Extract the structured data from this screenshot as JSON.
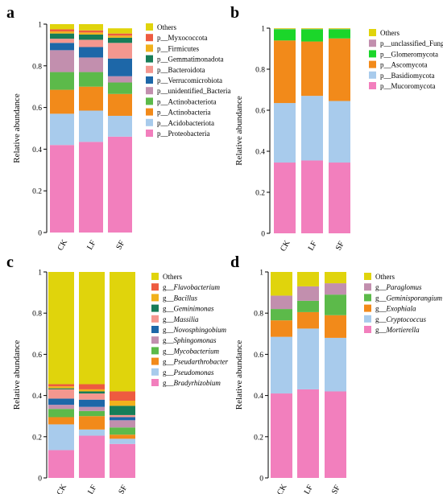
{
  "chart_data": [
    {
      "panel_label": "a",
      "type": "bar",
      "stacked": true,
      "categories": [
        "CK",
        "LF",
        "SF"
      ],
      "ylabel": "Relative abundance",
      "ylim": [
        0,
        1
      ],
      "yticks": [
        "0",
        "0.2",
        "0.4",
        "0.6",
        "0.8",
        "1"
      ],
      "series": [
        {
          "name": "p__Proteobacteria",
          "color": "#f27fbd",
          "values": [
            0.42,
            0.435,
            0.46
          ]
        },
        {
          "name": "p__Acidobacteriota",
          "color": "#a8cbec",
          "values": [
            0.15,
            0.15,
            0.1
          ]
        },
        {
          "name": "p__Actinobacteria",
          "color": "#f28a1a",
          "values": [
            0.115,
            0.115,
            0.105
          ]
        },
        {
          "name": "p__Actinobacteriota",
          "color": "#5cba4a",
          "values": [
            0.085,
            0.07,
            0.055
          ]
        },
        {
          "name": "p__unidentified_Bacteria",
          "color": "#c28fae",
          "values": [
            0.105,
            0.07,
            0.03
          ]
        },
        {
          "name": "p__Verrucomicrobiota",
          "color": "#1d67a8",
          "values": [
            0.035,
            0.05,
            0.085
          ]
        },
        {
          "name": "p__Bacteroidota",
          "color": "#f4978f",
          "values": [
            0.02,
            0.035,
            0.075
          ]
        },
        {
          "name": "p__Gemmatimonadota",
          "color": "#177d58",
          "values": [
            0.025,
            0.025,
            0.025
          ]
        },
        {
          "name": "p__Firmicutes",
          "color": "#f1b11c",
          "values": [
            0.01,
            0.01,
            0.01
          ]
        },
        {
          "name": "p__Myxococcota",
          "color": "#ee5b40",
          "values": [
            0.01,
            0.01,
            0.01
          ]
        },
        {
          "name": "Others",
          "color": "#e0d40c",
          "values": [
            0.025,
            0.03,
            0.025
          ]
        }
      ]
    },
    {
      "panel_label": "b",
      "type": "bar",
      "stacked": true,
      "categories": [
        "CK",
        "LF",
        "SF"
      ],
      "ylabel": "Relative abundance",
      "ylim": [
        0,
        1
      ],
      "yticks": [
        "0",
        "0.2",
        "0.4",
        "0.6",
        "0.8",
        "1"
      ],
      "series": [
        {
          "name": "p__Mucoromycota",
          "color": "#f27fbd",
          "values": [
            0.345,
            0.355,
            0.345
          ]
        },
        {
          "name": "p__Basidiomycota",
          "color": "#a8cbec",
          "values": [
            0.29,
            0.315,
            0.3
          ]
        },
        {
          "name": "p__Ascomycota",
          "color": "#f28a1a",
          "values": [
            0.305,
            0.265,
            0.305
          ]
        },
        {
          "name": "p__Glomeromycota",
          "color": "#1bd62a",
          "values": [
            0.055,
            0.06,
            0.045
          ]
        },
        {
          "name": "p__unclassified_Fungi",
          "color": "#c28fae",
          "values": [
            0.002,
            0.002,
            0.002
          ]
        },
        {
          "name": "Others",
          "color": "#e0d40c",
          "values": [
            0.003,
            0.003,
            0.003
          ]
        }
      ]
    },
    {
      "panel_label": "c",
      "type": "bar",
      "stacked": true,
      "categories": [
        "CK",
        "LF",
        "SF"
      ],
      "ylabel": "Relative abundance",
      "ylim": [
        0,
        1
      ],
      "yticks": [
        "0",
        "0.2",
        "0.4",
        "0.6",
        "0.8",
        "1"
      ],
      "series": [
        {
          "name": "g__Bradyrhizobium",
          "color": "#f27fbd",
          "values": [
            0.135,
            0.205,
            0.165
          ]
        },
        {
          "name": "g__Pseudomonas",
          "color": "#a8cbec",
          "values": [
            0.125,
            0.03,
            0.025
          ]
        },
        {
          "name": "g__Pseudarthrobacter",
          "color": "#f28a1a",
          "values": [
            0.035,
            0.065,
            0.02
          ]
        },
        {
          "name": "g__Mycobacterium",
          "color": "#5cba4a",
          "values": [
            0.04,
            0.025,
            0.035
          ]
        },
        {
          "name": "g__Sphingomonas",
          "color": "#c28fae",
          "values": [
            0.02,
            0.02,
            0.035
          ]
        },
        {
          "name": "g__Novosphingobium",
          "color": "#1d67a8",
          "values": [
            0.03,
            0.035,
            0.015
          ]
        },
        {
          "name": "g__Massilia",
          "color": "#f4978f",
          "values": [
            0.045,
            0.03,
            0.01
          ]
        },
        {
          "name": "g__Geminimonas",
          "color": "#177d58",
          "values": [
            0.005,
            0.01,
            0.045
          ]
        },
        {
          "name": "g__Bacillus",
          "color": "#f1b11c",
          "values": [
            0.01,
            0.01,
            0.025
          ]
        },
        {
          "name": "g__Flavobacterium",
          "color": "#ee5b40",
          "values": [
            0.01,
            0.025,
            0.045
          ]
        },
        {
          "name": "Others",
          "color": "#e0d40c",
          "values": [
            0.545,
            0.545,
            0.58
          ]
        }
      ]
    },
    {
      "panel_label": "d",
      "type": "bar",
      "stacked": true,
      "categories": [
        "CK",
        "LF",
        "SF"
      ],
      "ylabel": "Relative abundance",
      "ylim": [
        0,
        1
      ],
      "yticks": [
        "0",
        "0.2",
        "0.4",
        "0.6",
        "0.8",
        "1"
      ],
      "series": [
        {
          "name": "g__Mortierella",
          "color": "#f27fbd",
          "values": [
            0.41,
            0.43,
            0.42
          ]
        },
        {
          "name": "g__Cryptococcus",
          "color": "#a8cbec",
          "values": [
            0.275,
            0.295,
            0.26
          ]
        },
        {
          "name": "g__Exophiala",
          "color": "#f28a1a",
          "values": [
            0.08,
            0.08,
            0.11
          ]
        },
        {
          "name": "g__Geminisporangium",
          "color": "#5cba4a",
          "values": [
            0.055,
            0.055,
            0.1
          ]
        },
        {
          "name": "g__Paraglomus",
          "color": "#c28fae",
          "values": [
            0.065,
            0.07,
            0.055
          ]
        },
        {
          "name": "Others",
          "color": "#e0d40c",
          "values": [
            0.115,
            0.07,
            0.055
          ]
        }
      ]
    }
  ]
}
